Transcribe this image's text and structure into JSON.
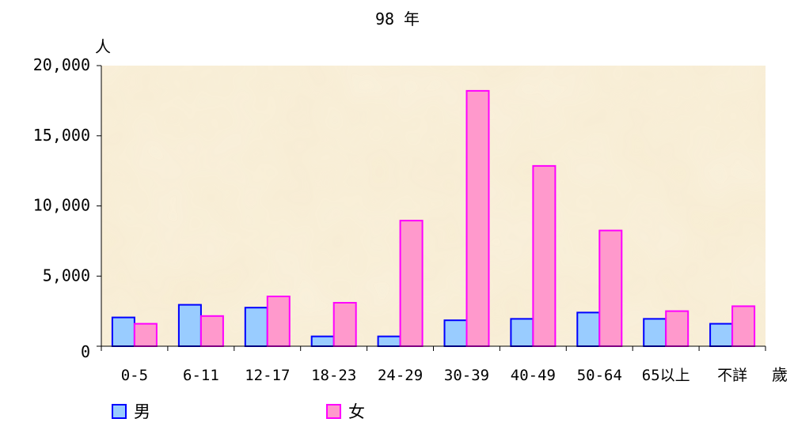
{
  "chart_data": {
    "type": "bar",
    "title": "98 年",
    "ylabel": "人",
    "xlabel": "歲",
    "categories": [
      "0-5",
      "6-11",
      "12-17",
      "18-23",
      "24-29",
      "30-39",
      "40-49",
      "50-64",
      "65以上",
      "不詳"
    ],
    "series": [
      {
        "name": "男",
        "color": "#99ccff",
        "stroke": "#0000ff",
        "values": [
          2050,
          2950,
          2750,
          700,
          700,
          1850,
          1950,
          2400,
          1950,
          1600
        ]
      },
      {
        "name": "女",
        "color": "#ff99cc",
        "stroke": "#ff00ff",
        "values": [
          1600,
          2150,
          3550,
          3100,
          8950,
          18200,
          12850,
          8250,
          2500,
          2850
        ]
      }
    ],
    "ylim": [
      0,
      20000
    ],
    "yticks": [
      0,
      5000,
      10000,
      15000,
      20000
    ],
    "ytick_labels": [
      "0",
      "5,000",
      "10,000",
      "15,000",
      "20,000"
    ],
    "grid": false,
    "legend_position": "bottom-left",
    "plot_background": "#f7ecd2"
  }
}
